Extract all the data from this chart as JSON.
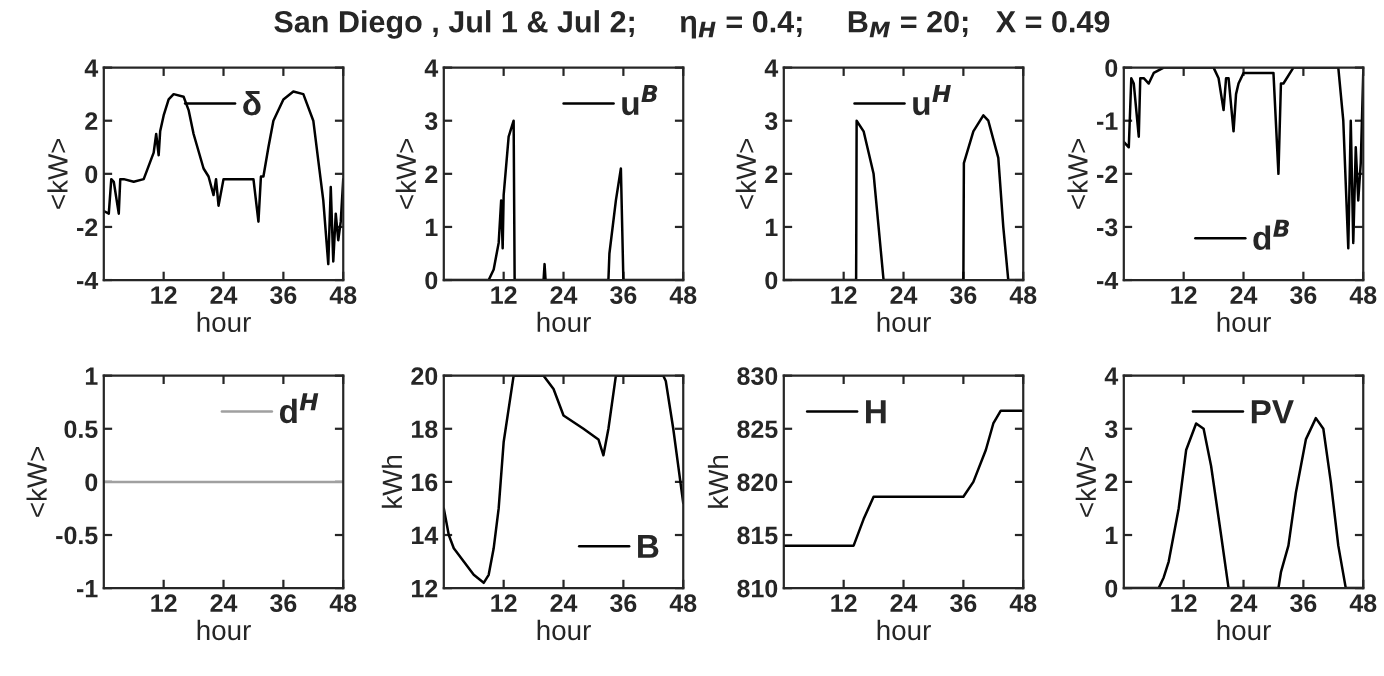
{
  "chart_data": [
    {
      "type": "line",
      "title": "San Diego , Jul 1 & Jul 2;     η$_{H}$ = 0.4;     B$_{M}$ = 20;   X = 0.49",
      "xlabel": "hour",
      "ylabel": "<kW>",
      "xlim": [
        0,
        48
      ],
      "xticks": [
        12,
        24,
        36,
        48
      ],
      "ylim": [
        -4,
        4
      ],
      "yticks": [
        -4,
        -2,
        0,
        2,
        4
      ],
      "legend": "top",
      "grid": false,
      "series": [
        {
          "name": "δ",
          "color": "#000000",
          "x": [
            0,
            1,
            1.5,
            2,
            3,
            3.3,
            4,
            6,
            8,
            9,
            10,
            10.5,
            11,
            11.3,
            12,
            13,
            14,
            16,
            17,
            18,
            20,
            21,
            22,
            22.5,
            23,
            24,
            30,
            31,
            31.5,
            32,
            33,
            34,
            36,
            38,
            40,
            42,
            43,
            44,
            45,
            45.5,
            46,
            46.5,
            47,
            47.5,
            48
          ],
          "values": [
            -1.4,
            -1.5,
            -0.2,
            -0.3,
            -1.5,
            -0.2,
            -0.2,
            -0.3,
            -0.2,
            0.3,
            0.8,
            1.5,
            0.7,
            1.6,
            2.2,
            2.8,
            3.0,
            2.9,
            2.4,
            1.5,
            0.2,
            -0.1,
            -0.8,
            -0.2,
            -1.2,
            -0.2,
            -0.2,
            -1.8,
            -0.1,
            -0.1,
            1.0,
            2.0,
            2.8,
            3.1,
            3.0,
            2.0,
            0.5,
            -1.0,
            -3.4,
            -0.5,
            -3.3,
            -1.5,
            -2.5,
            -1.8,
            -0.2
          ]
        }
      ]
    },
    {
      "type": "line",
      "xlabel": "hour",
      "ylabel": "<kW>",
      "xlim": [
        0,
        48
      ],
      "xticks": [
        12,
        24,
        36,
        48
      ],
      "ylim": [
        0,
        4
      ],
      "yticks": [
        0,
        1,
        2,
        3,
        4
      ],
      "legend": "top right",
      "grid": false,
      "series": [
        {
          "name": "u$^{B}$",
          "color": "#000000",
          "x": [
            0,
            9,
            10,
            11,
            11.5,
            11.8,
            12,
            13,
            14,
            14.2,
            20,
            20.2,
            20.4,
            33,
            33.2,
            34.5,
            35.5,
            36,
            48
          ],
          "values": [
            0,
            0,
            0.2,
            0.7,
            1.5,
            0.6,
            1.6,
            2.7,
            3.0,
            0,
            0,
            0.3,
            0,
            0,
            0.5,
            1.5,
            2.1,
            0,
            0
          ]
        }
      ]
    },
    {
      "type": "line",
      "xlabel": "hour",
      "ylabel": "<kW>",
      "xlim": [
        0,
        48
      ],
      "xticks": [
        12,
        24,
        36,
        48
      ],
      "ylim": [
        0,
        4
      ],
      "yticks": [
        0,
        1,
        2,
        3,
        4
      ],
      "legend": "top",
      "grid": false,
      "series": [
        {
          "name": "u$^{H}$",
          "color": "#000000",
          "x": [
            0,
            14.5,
            14.6,
            16,
            18,
            19,
            20,
            36,
            36.1,
            38,
            40,
            41,
            43,
            44,
            45,
            48
          ],
          "values": [
            0,
            0,
            3.0,
            2.8,
            2.0,
            1.0,
            0,
            0,
            2.2,
            2.8,
            3.1,
            3.0,
            2.3,
            1.0,
            0,
            0
          ]
        }
      ]
    },
    {
      "type": "line",
      "xlabel": "hour",
      "ylabel": "<kW>",
      "xlim": [
        0,
        48
      ],
      "xticks": [
        12,
        24,
        36,
        48
      ],
      "ylim": [
        -4,
        0
      ],
      "yticks": [
        -4,
        -3,
        -2,
        -1,
        0
      ],
      "legend": "bottom",
      "grid": false,
      "series": [
        {
          "name": "d$^{B}$",
          "color": "#000000",
          "x": [
            0,
            1,
            1.5,
            2,
            3,
            3.3,
            4,
            5,
            6,
            8,
            18,
            19,
            20,
            20.5,
            21,
            22,
            22.5,
            23,
            24,
            30,
            31,
            31.5,
            32,
            34,
            43,
            44,
            45,
            45.5,
            46,
            46.5,
            47,
            47.5,
            48
          ],
          "values": [
            -1.4,
            -1.5,
            -0.2,
            -0.3,
            -1.3,
            -0.2,
            -0.2,
            -0.3,
            -0.1,
            0,
            0,
            -0.2,
            -0.8,
            -0.2,
            -0.2,
            -1.2,
            -0.5,
            -0.3,
            -0.1,
            -0.1,
            -2.0,
            -0.3,
            -0.3,
            0,
            0,
            -1.0,
            -3.4,
            -1.0,
            -3.3,
            -1.5,
            -2.5,
            -1.8,
            -0.1
          ]
        }
      ]
    },
    {
      "type": "line",
      "xlabel": "hour",
      "ylabel": "<kW>",
      "xlim": [
        0,
        48
      ],
      "xticks": [
        12,
        24,
        36,
        48
      ],
      "ylim": [
        -1,
        1
      ],
      "yticks": [
        -1,
        -0.5,
        0,
        0.5,
        1
      ],
      "legend": "top right",
      "grid": false,
      "series": [
        {
          "name": "d$^{H}$",
          "color": "#a0a0a0",
          "x": [
            0,
            48
          ],
          "values": [
            0,
            0
          ]
        }
      ]
    },
    {
      "type": "line",
      "xlabel": "hour",
      "ylabel": "kWh",
      "xlim": [
        0,
        48
      ],
      "xticks": [
        12,
        24,
        36,
        48
      ],
      "ylim": [
        12,
        20
      ],
      "yticks": [
        12,
        14,
        16,
        18,
        20
      ],
      "legend": "bottom right",
      "grid": false,
      "series": [
        {
          "name": "B",
          "color": "#000000",
          "x": [
            0,
            1,
            2,
            4,
            6,
            8,
            9,
            10,
            11,
            12,
            14,
            20,
            22,
            24,
            28,
            31,
            32,
            33,
            34.5,
            44,
            44.5,
            46,
            48
          ],
          "values": [
            15,
            14,
            13.5,
            13,
            12.5,
            12.2,
            12.5,
            13.5,
            15,
            17.5,
            20,
            20,
            19.5,
            18.5,
            18,
            17.6,
            17,
            18,
            20,
            20,
            19.8,
            18,
            15.2
          ]
        }
      ]
    },
    {
      "type": "line",
      "xlabel": "hour",
      "ylabel": "kWh",
      "xlim": [
        0,
        48
      ],
      "xticks": [
        12,
        24,
        36,
        48
      ],
      "ylim": [
        810,
        830
      ],
      "yticks": [
        810,
        815,
        820,
        825,
        830
      ],
      "legend": "top left",
      "grid": false,
      "series": [
        {
          "name": "H",
          "color": "#000000",
          "x": [
            0,
            14,
            16,
            18,
            36,
            38,
            40.5,
            42,
            43.5,
            48
          ],
          "values": [
            814,
            814,
            816.5,
            818.6,
            818.6,
            820,
            823,
            825.5,
            826.7,
            826.7
          ]
        }
      ]
    },
    {
      "type": "line",
      "xlabel": "hour",
      "ylabel": "<kW>",
      "xlim": [
        0,
        48
      ],
      "xticks": [
        12,
        24,
        36,
        48
      ],
      "ylim": [
        0,
        4
      ],
      "yticks": [
        0,
        1,
        2,
        3,
        4
      ],
      "legend": "top",
      "grid": false,
      "series": [
        {
          "name": "PV",
          "color": "#000000",
          "x": [
            0,
            7,
            8,
            9,
            11,
            12.5,
            14.5,
            16,
            17.5,
            19.5,
            21,
            31,
            31.5,
            33,
            34.5,
            36.5,
            38.5,
            40,
            41.5,
            43,
            44.5,
            48
          ],
          "values": [
            0,
            0,
            0.2,
            0.5,
            1.5,
            2.6,
            3.1,
            3.0,
            2.3,
            1.0,
            0,
            0,
            0.3,
            0.8,
            1.8,
            2.8,
            3.2,
            3.0,
            2.0,
            0.8,
            0,
            0
          ]
        }
      ]
    }
  ]
}
